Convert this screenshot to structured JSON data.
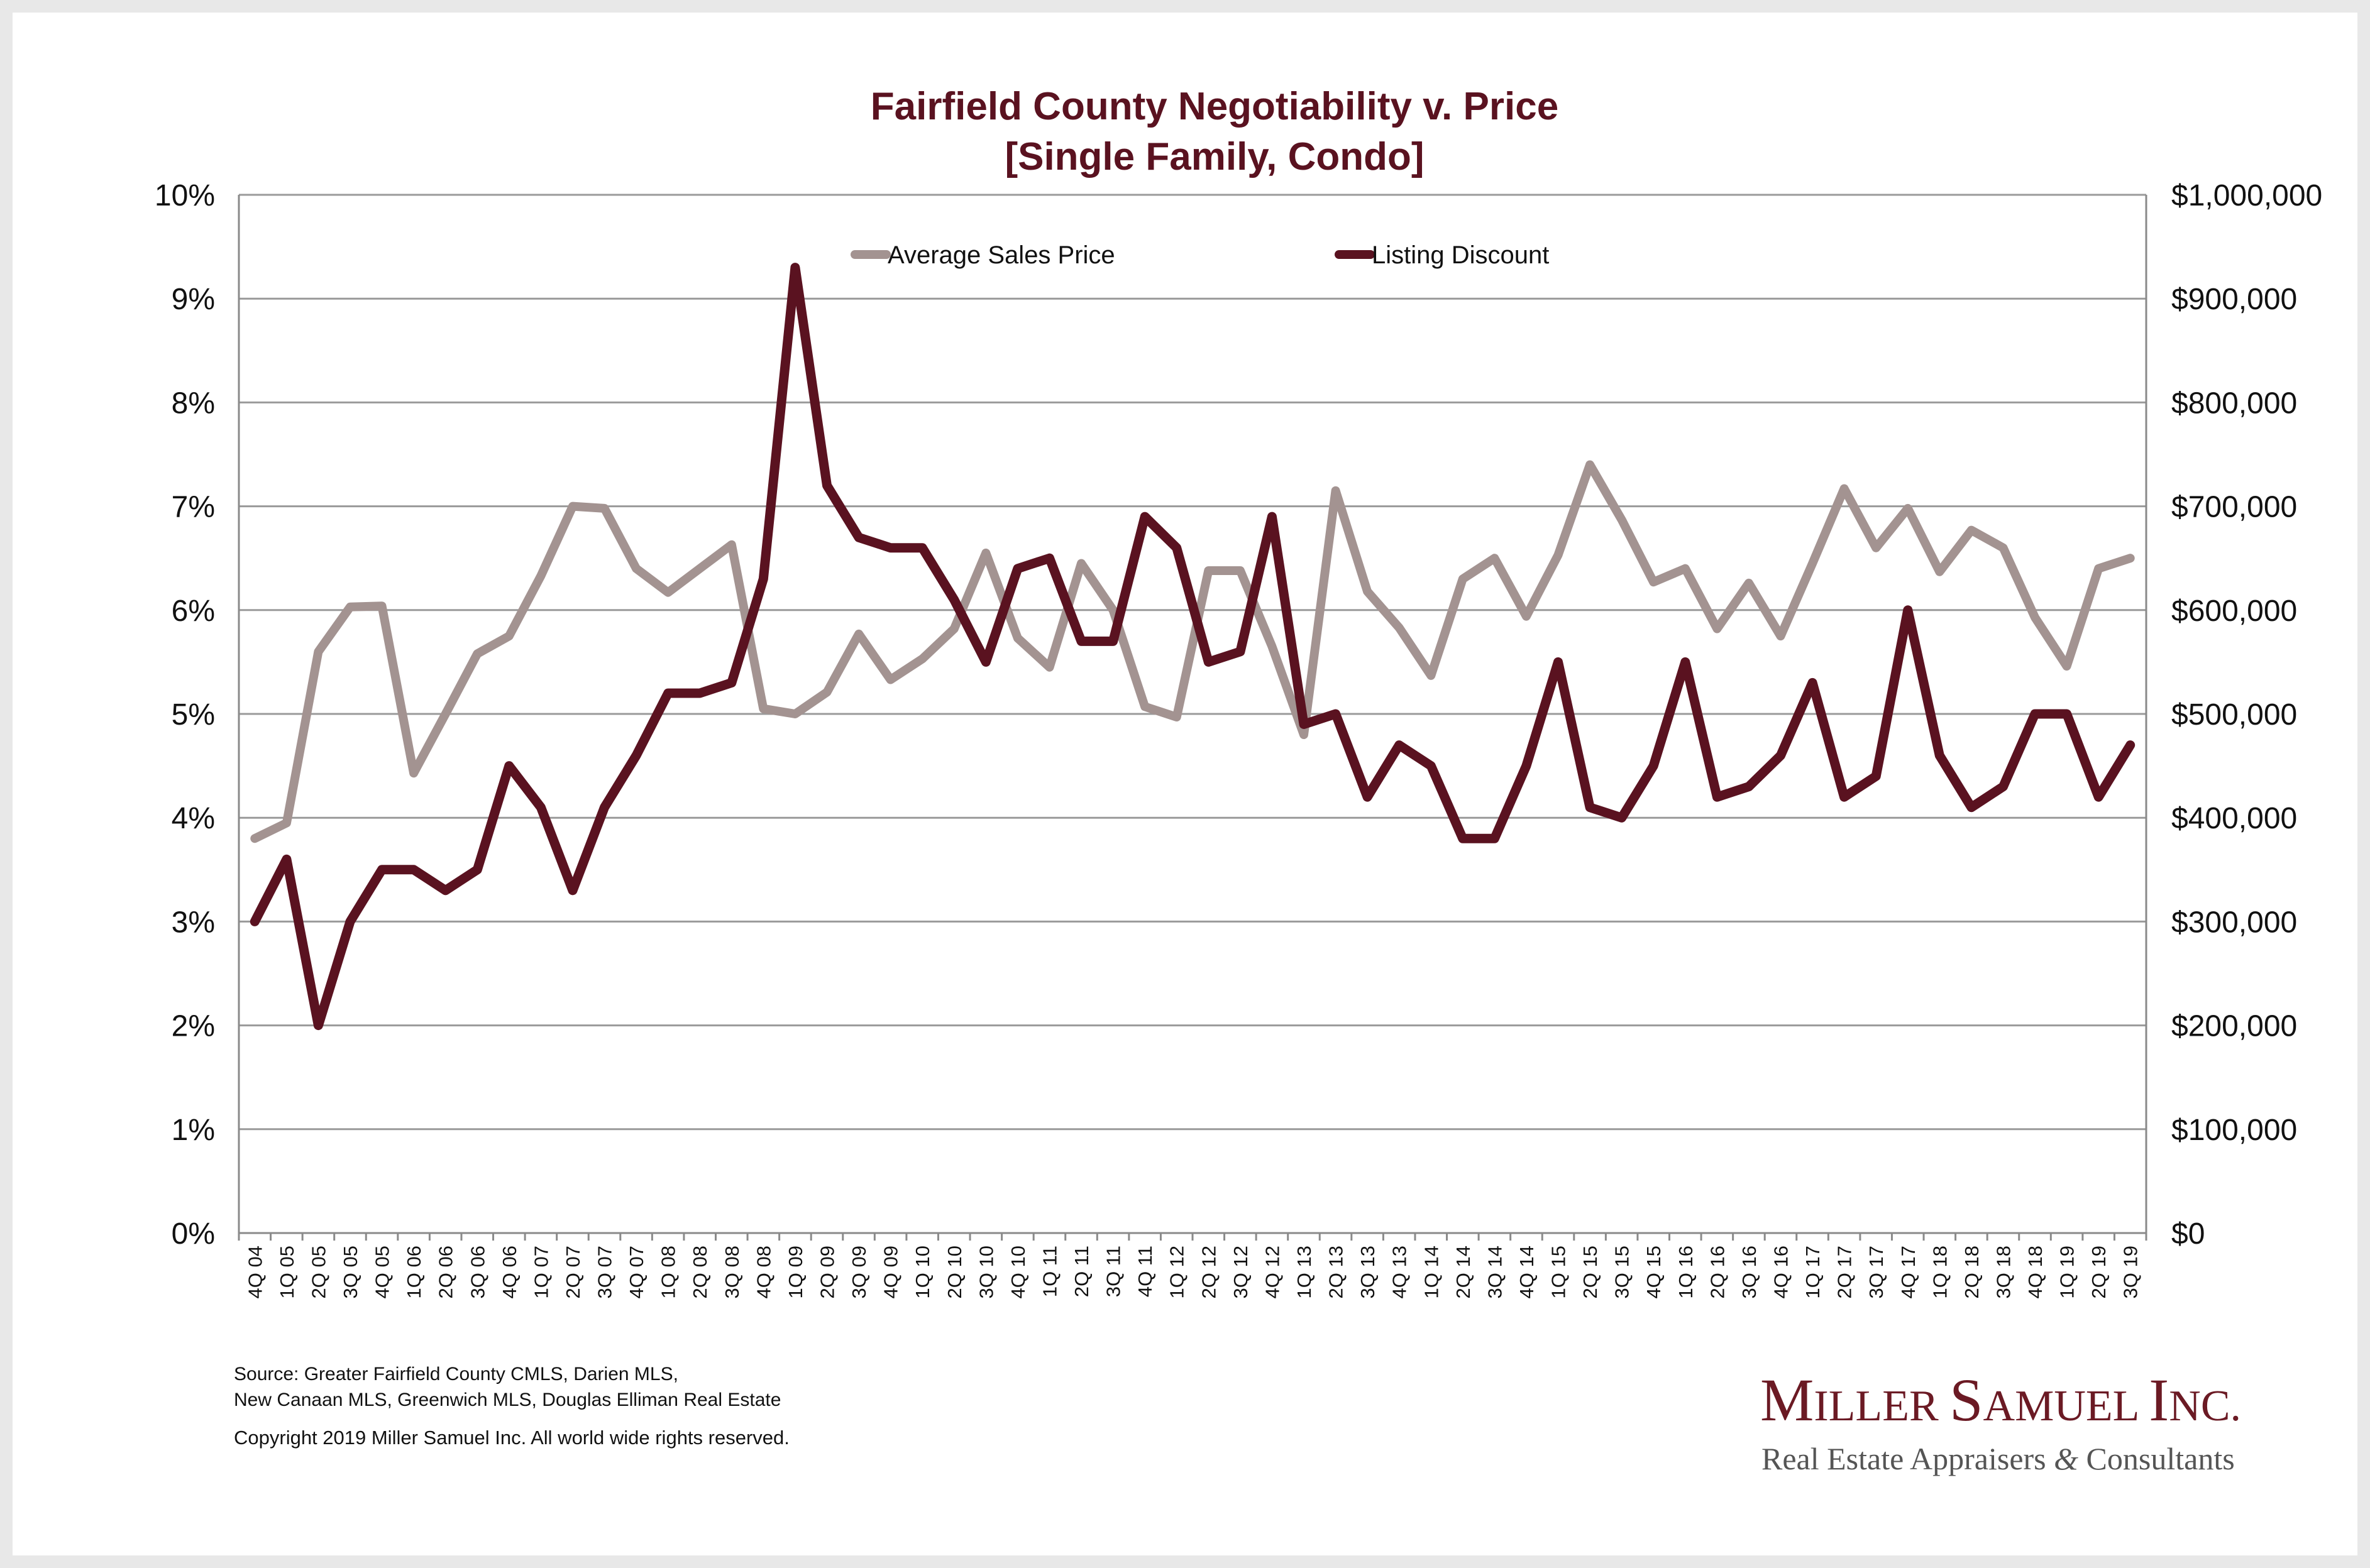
{
  "chart_data": {
    "type": "line",
    "title": "Fairfield County Negotiability v. Price",
    "subtitle": "[Single Family, Condo]",
    "categories": [
      "4Q 04",
      "1Q 05",
      "2Q 05",
      "3Q 05",
      "4Q 05",
      "1Q 06",
      "2Q 06",
      "3Q 06",
      "4Q 06",
      "1Q 07",
      "2Q 07",
      "3Q 07",
      "4Q 07",
      "1Q 08",
      "2Q 08",
      "3Q 08",
      "4Q 08",
      "1Q 09",
      "2Q 09",
      "3Q 09",
      "4Q 09",
      "1Q 10",
      "2Q 10",
      "3Q 10",
      "4Q 10",
      "1Q 11",
      "2Q 11",
      "3Q 11",
      "4Q 11",
      "1Q 12",
      "2Q 12",
      "3Q 12",
      "4Q 12",
      "1Q 13",
      "2Q 13",
      "3Q 13",
      "4Q 13",
      "1Q 14",
      "2Q 14",
      "3Q 14",
      "4Q 14",
      "1Q 15",
      "2Q 15",
      "3Q 15",
      "4Q 15",
      "1Q 16",
      "2Q 16",
      "3Q 16",
      "4Q 16",
      "1Q 17",
      "2Q 17",
      "3Q 17",
      "4Q 17",
      "1Q 18",
      "2Q 18",
      "3Q 18",
      "4Q 18",
      "1Q 19",
      "2Q 19",
      "3Q 19"
    ],
    "series": [
      {
        "name": "Average Sales Price",
        "axis": "right",
        "color": "#a39391",
        "values": [
          380000,
          395000,
          560000,
          603000,
          604000,
          443000,
          500000,
          558000,
          575000,
          633000,
          700000,
          698000,
          640000,
          617000,
          640000,
          663000,
          505000,
          500000,
          521000,
          577000,
          533000,
          553000,
          582000,
          655000,
          573000,
          545000,
          645000,
          600000,
          507000,
          497000,
          638000,
          638000,
          565000,
          480000,
          715000,
          618000,
          583000,
          537000,
          630000,
          650000,
          594000,
          653000,
          740000,
          687000,
          627000,
          640000,
          582000,
          626000,
          575000,
          645000,
          717000,
          660000,
          698000,
          637000,
          677000,
          660000,
          593000,
          546000,
          640000,
          650000
        ]
      },
      {
        "name": "Listing Discount",
        "axis": "left",
        "color": "#5a1220",
        "values": [
          3.0,
          3.6,
          2.0,
          3.0,
          3.5,
          3.5,
          3.3,
          3.5,
          4.5,
          4.1,
          3.3,
          4.1,
          4.6,
          5.2,
          5.2,
          5.3,
          6.3,
          9.3,
          7.2,
          6.7,
          6.6,
          6.6,
          6.1,
          5.5,
          6.4,
          6.5,
          5.7,
          5.7,
          6.9,
          6.6,
          5.5,
          5.6,
          6.9,
          4.9,
          5.0,
          4.2,
          4.7,
          4.5,
          3.8,
          3.8,
          4.5,
          5.5,
          4.1,
          4.0,
          4.5,
          5.5,
          4.2,
          4.3,
          4.6,
          5.3,
          4.2,
          4.4,
          6.0,
          4.6,
          4.1,
          4.3,
          5.0,
          5.0,
          4.2,
          4.7
        ]
      }
    ],
    "y_left": {
      "range": [
        0,
        10
      ],
      "ticks": [
        0,
        1,
        2,
        3,
        4,
        5,
        6,
        7,
        8,
        9,
        10
      ],
      "tick_labels": [
        "0%",
        "1%",
        "2%",
        "3%",
        "4%",
        "5%",
        "6%",
        "7%",
        "8%",
        "9%",
        "10%"
      ]
    },
    "y_right": {
      "range": [
        0,
        1000000
      ],
      "ticks": [
        0,
        100000,
        200000,
        300000,
        400000,
        500000,
        600000,
        700000,
        800000,
        900000,
        1000000
      ],
      "tick_labels": [
        "$0",
        "$100,000",
        "$200,000",
        "$300,000",
        "$400,000",
        "$500,000",
        "$600,000",
        "$700,000",
        "$800,000",
        "$900,000",
        "$1,000,000"
      ]
    },
    "grid": true,
    "legend": "top-center"
  },
  "footer": {
    "source_line1": "Source:  Greater Fairfield County CMLS, Darien MLS,",
    "source_line2": "New Canaan MLS, Greenwich MLS, Douglas Elliman Real Estate",
    "copyright": "Copyright 2019 Miller Samuel Inc.  All world wide rights reserved."
  },
  "logo": {
    "name": "Miller Samuel Inc.",
    "tagline": "Real Estate Appraisers & Consultants"
  }
}
